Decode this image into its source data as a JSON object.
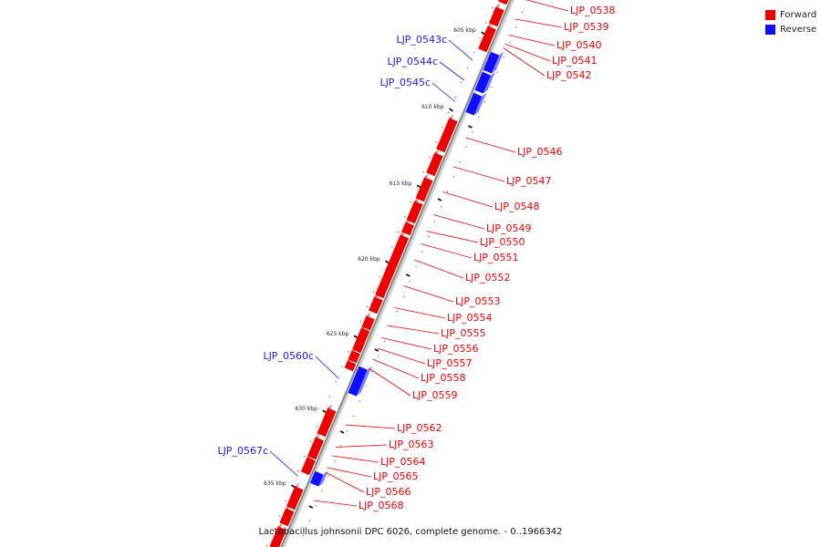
{
  "caption": "Lactobacillus johnsonii DPC 6026, complete genome. - 0..1966342",
  "colors": {
    "forward": "#ee0000",
    "reverse": "#1010ff",
    "backbone": "#888888"
  },
  "legend": [
    {
      "label": "Forward",
      "color": "#ee0000"
    },
    {
      "label": "Reverse",
      "color": "#1010ff"
    }
  ],
  "ticks": [
    "605 kbp",
    "610 kbp",
    "615 kbp",
    "620 kbp",
    "625 kbp",
    "630 kbp",
    "635 kbp"
  ],
  "genes": [
    {
      "name": "LJP_0538",
      "strand": "forward"
    },
    {
      "name": "LJP_0539",
      "strand": "forward"
    },
    {
      "name": "LJP_0540",
      "strand": "forward"
    },
    {
      "name": "LJP_0541",
      "strand": "forward"
    },
    {
      "name": "LJP_0542",
      "strand": "forward"
    },
    {
      "name": "LJP_0543c",
      "strand": "reverse"
    },
    {
      "name": "LJP_0544c",
      "strand": "reverse"
    },
    {
      "name": "LJP_0545c",
      "strand": "reverse"
    },
    {
      "name": "LJP_0546",
      "strand": "forward"
    },
    {
      "name": "LJP_0547",
      "strand": "forward"
    },
    {
      "name": "LJP_0548",
      "strand": "forward"
    },
    {
      "name": "LJP_0549",
      "strand": "forward"
    },
    {
      "name": "LJP_0550",
      "strand": "forward"
    },
    {
      "name": "LJP_0551",
      "strand": "forward"
    },
    {
      "name": "LJP_0552",
      "strand": "forward"
    },
    {
      "name": "LJP_0553",
      "strand": "forward"
    },
    {
      "name": "LJP_0554",
      "strand": "forward"
    },
    {
      "name": "LJP_0555",
      "strand": "forward"
    },
    {
      "name": "LJP_0556",
      "strand": "forward"
    },
    {
      "name": "LJP_0557",
      "strand": "forward"
    },
    {
      "name": "LJP_0558",
      "strand": "forward"
    },
    {
      "name": "LJP_0559",
      "strand": "forward"
    },
    {
      "name": "LJP_0560c",
      "strand": "reverse"
    },
    {
      "name": "LJP_0562",
      "strand": "forward"
    },
    {
      "name": "LJP_0563",
      "strand": "forward"
    },
    {
      "name": "LJP_0564",
      "strand": "forward"
    },
    {
      "name": "LJP_0565",
      "strand": "forward"
    },
    {
      "name": "LJP_0566",
      "strand": "forward"
    },
    {
      "name": "LJP_0567c",
      "strand": "reverse"
    },
    {
      "name": "LJP_0568",
      "strand": "forward"
    }
  ]
}
